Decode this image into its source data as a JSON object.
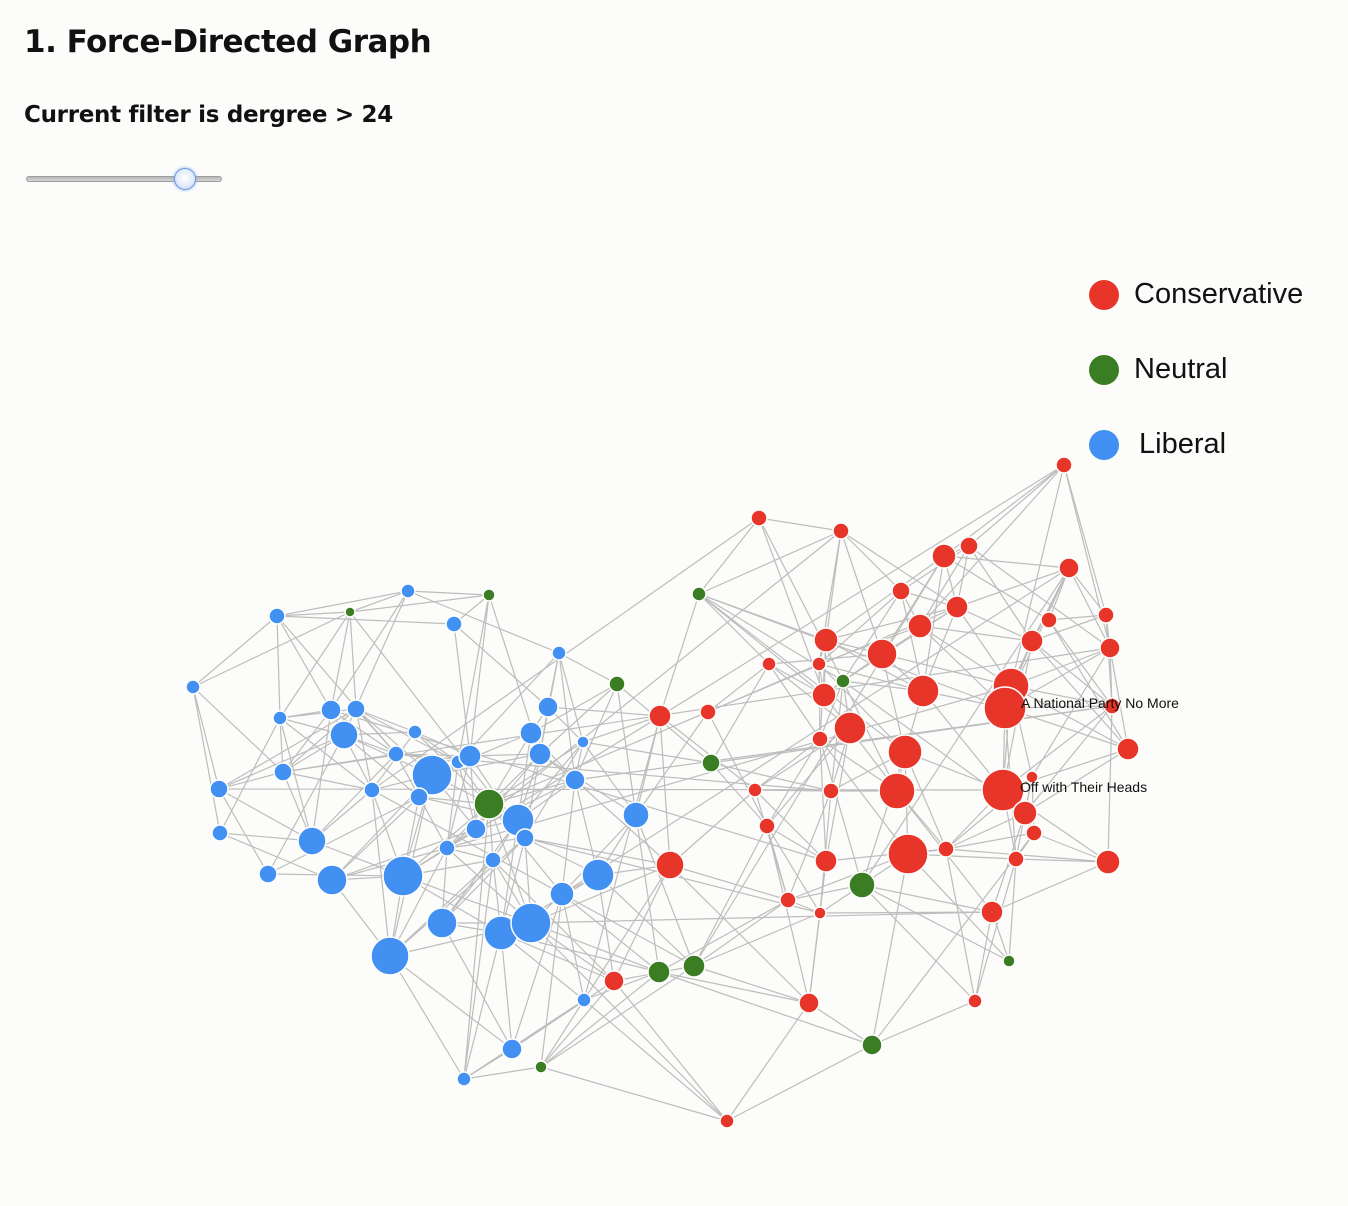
{
  "header": {
    "title": "1. Force-Directed Graph",
    "filter_text": "Current filter is dergree > 24"
  },
  "slider": {
    "min": 0,
    "max": 28,
    "value": 24
  },
  "colors": {
    "Conservative": "#e8352a",
    "Neutral": "#3a7d23",
    "Liberal": "#4291f2"
  },
  "legend": [
    {
      "label": "Conservative",
      "color": "#e8352a"
    },
    {
      "label": "Neutral",
      "color": "#3a7d23"
    },
    {
      "label": "Liberal",
      "color": "#4291f2"
    }
  ],
  "labels": [
    {
      "text": "A National Party No More"
    },
    {
      "text": "Off with Their Heads"
    }
  ]
}
